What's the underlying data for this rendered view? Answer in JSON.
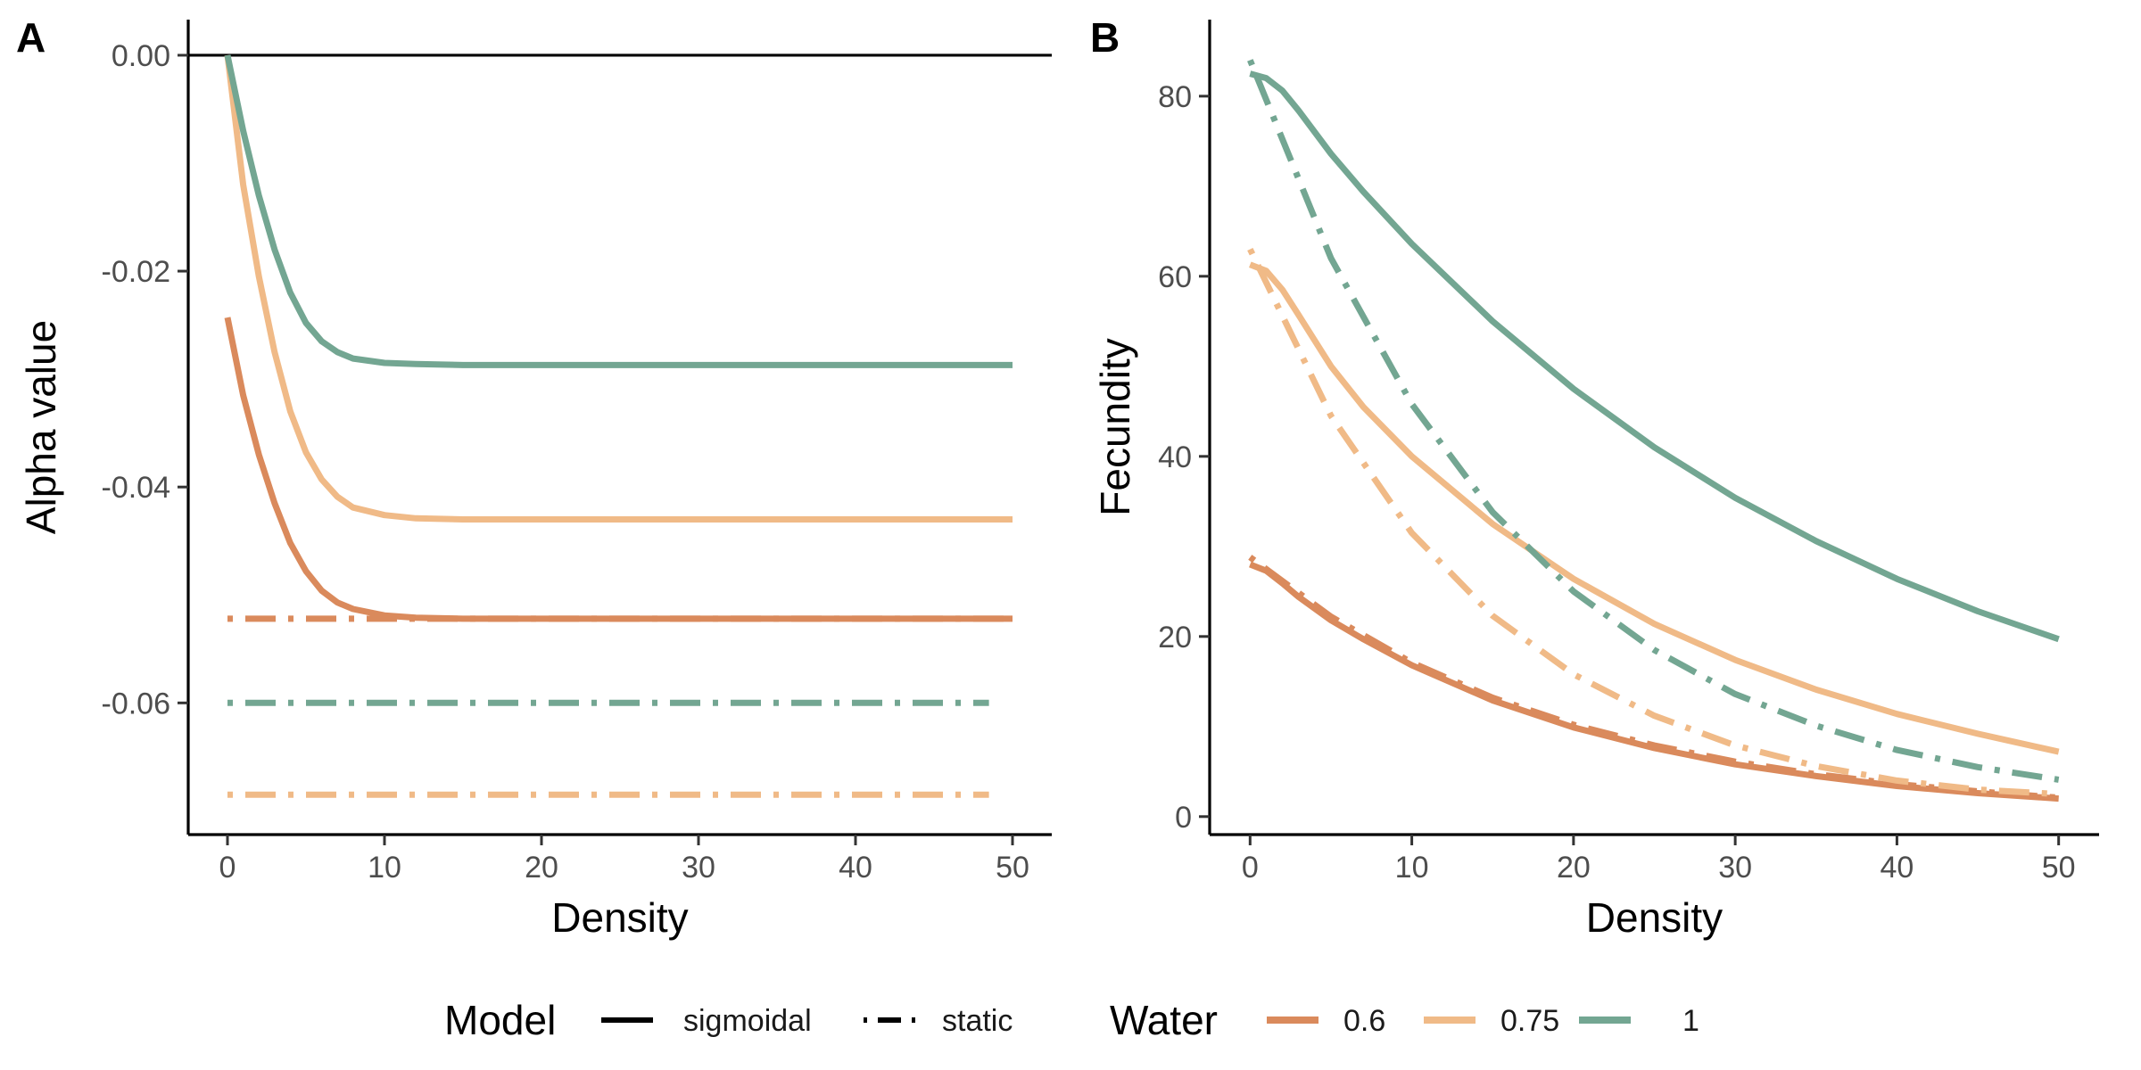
{
  "colors": {
    "water_0.6": "#da8a5c",
    "water_0.75": "#f0ba87",
    "water_1": "#73a692"
  },
  "legend": {
    "model_title": "Model",
    "model_items": [
      {
        "label": "sigmoidal",
        "style": "solid"
      },
      {
        "label": "static",
        "style": "dotdash"
      }
    ],
    "water_title": "Water",
    "water_items": [
      {
        "label": "0.6",
        "color": "#da8a5c"
      },
      {
        "label": "0.75",
        "color": "#f0ba87"
      },
      {
        "label": "1",
        "color": "#73a692"
      }
    ]
  },
  "chart_data": [
    {
      "panel": "A",
      "type": "line",
      "xlabel": "Density",
      "ylabel": "Alpha value",
      "xlim": [
        -2.5,
        52.5
      ],
      "ylim": [
        -0.0722,
        0.0033
      ],
      "x_ticks": [
        0,
        10,
        20,
        30,
        40,
        50
      ],
      "x_tick_labels": [
        "0",
        "10",
        "20",
        "30",
        "40",
        "50"
      ],
      "y_ticks": [
        0,
        -0.02,
        -0.04,
        -0.06
      ],
      "y_tick_labels": [
        "0.00",
        "-0.02",
        "-0.04",
        "-0.06"
      ],
      "hline": 0,
      "series": [
        {
          "model": "sigmoidal",
          "water": "0.6",
          "x": [
            0,
            1,
            2,
            3,
            4,
            5,
            6,
            7,
            8,
            10,
            12,
            15,
            20,
            30,
            40,
            50
          ],
          "y": [
            -0.0243,
            -0.0315,
            -0.037,
            -0.0415,
            -0.0452,
            -0.0478,
            -0.0496,
            -0.0507,
            -0.0513,
            -0.0519,
            -0.0521,
            -0.0522,
            -0.0522,
            -0.0522,
            -0.0522,
            -0.0522
          ]
        },
        {
          "model": "sigmoidal",
          "water": "0.75",
          "x": [
            0,
            1,
            2,
            3,
            4,
            5,
            6,
            7,
            8,
            10,
            12,
            15,
            20,
            30,
            40,
            50
          ],
          "y": [
            0,
            -0.012,
            -0.0205,
            -0.0275,
            -0.033,
            -0.0368,
            -0.0393,
            -0.0409,
            -0.0419,
            -0.0426,
            -0.0429,
            -0.043,
            -0.043,
            -0.043,
            -0.043,
            -0.043
          ]
        },
        {
          "model": "sigmoidal",
          "water": "1",
          "x": [
            0,
            1,
            2,
            3,
            4,
            5,
            6,
            7,
            8,
            10,
            12,
            15,
            20,
            30,
            40,
            50
          ],
          "y": [
            0,
            -0.007,
            -0.013,
            -0.018,
            -0.022,
            -0.0248,
            -0.0265,
            -0.0275,
            -0.0281,
            -0.0285,
            -0.0286,
            -0.0287,
            -0.0287,
            -0.0287,
            -0.0287,
            -0.0287
          ]
        },
        {
          "model": "static",
          "water": "0.6",
          "x": [
            0,
            50
          ],
          "y": [
            -0.0522,
            -0.0522
          ]
        },
        {
          "model": "static",
          "water": "0.75",
          "x": [
            0,
            48.5
          ],
          "y": [
            -0.0685,
            -0.0685
          ]
        },
        {
          "model": "static",
          "water": "1",
          "x": [
            0,
            48.5
          ],
          "y": [
            -0.06,
            -0.06
          ]
        }
      ]
    },
    {
      "panel": "B",
      "type": "line",
      "xlabel": "Density",
      "ylabel": "Fecundity",
      "xlim": [
        -2.5,
        52.5
      ],
      "ylim": [
        -2.0,
        88.5
      ],
      "x_ticks": [
        0,
        10,
        20,
        30,
        40,
        50
      ],
      "x_tick_labels": [
        "0",
        "10",
        "20",
        "30",
        "40",
        "50"
      ],
      "y_ticks": [
        0,
        20,
        40,
        60,
        80
      ],
      "y_tick_labels": [
        "0",
        "20",
        "40",
        "60",
        "80"
      ],
      "series": [
        {
          "model": "sigmoidal",
          "water": "0.6",
          "x": [
            0,
            1,
            2,
            3,
            5,
            7,
            10,
            15,
            20,
            25,
            30,
            35,
            40,
            45,
            50
          ],
          "y": [
            28.0,
            27.3,
            25.9,
            24.4,
            21.8,
            19.7,
            16.8,
            12.9,
            9.9,
            7.6,
            5.8,
            4.5,
            3.4,
            2.6,
            2.0
          ]
        },
        {
          "model": "sigmoidal",
          "water": "0.75",
          "x": [
            0,
            1,
            2,
            3,
            5,
            7,
            10,
            15,
            20,
            25,
            30,
            35,
            40,
            45,
            50
          ],
          "y": [
            61.3,
            60.6,
            58.5,
            55.7,
            50.0,
            45.5,
            40.0,
            32.5,
            26.4,
            21.4,
            17.4,
            14.1,
            11.4,
            9.2,
            7.2
          ]
        },
        {
          "model": "sigmoidal",
          "water": "1",
          "x": [
            0,
            1,
            2,
            3,
            5,
            7,
            10,
            15,
            20,
            25,
            30,
            35,
            40,
            45,
            50
          ],
          "y": [
            82.5,
            82.0,
            80.6,
            78.4,
            73.6,
            69.4,
            63.6,
            55.0,
            47.5,
            41.0,
            35.4,
            30.6,
            26.4,
            22.8,
            19.7
          ]
        },
        {
          "model": "static",
          "water": "0.6",
          "x": [
            0,
            5,
            10,
            15,
            20,
            25,
            30,
            35,
            40,
            45,
            50
          ],
          "y": [
            28.8,
            22.2,
            17.1,
            13.2,
            10.2,
            7.9,
            6.1,
            4.7,
            3.6,
            2.8,
            2.1
          ]
        },
        {
          "model": "static",
          "water": "0.75",
          "x": [
            0,
            5,
            10,
            15,
            20,
            25,
            30,
            35,
            40,
            45,
            50
          ],
          "y": [
            63.0,
            44.5,
            31.5,
            22.3,
            15.8,
            11.2,
            7.9,
            5.6,
            4.0,
            3.0,
            2.5
          ]
        },
        {
          "model": "static",
          "water": "1",
          "x": [
            0,
            5,
            10,
            15,
            20,
            25,
            30,
            35,
            40,
            45,
            50
          ],
          "y": [
            84.0,
            62.0,
            45.8,
            33.8,
            25.0,
            18.5,
            13.6,
            10.1,
            7.4,
            5.5,
            4.1
          ]
        }
      ]
    }
  ]
}
